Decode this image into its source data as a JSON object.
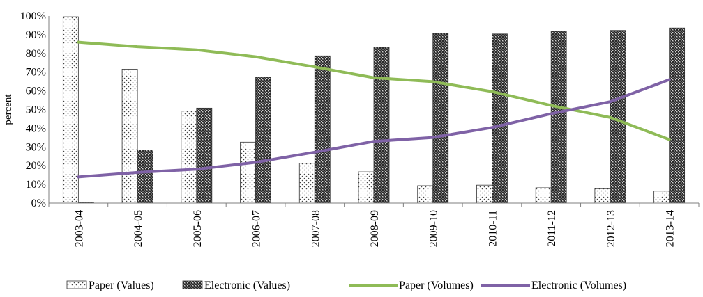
{
  "chart_data": {
    "type": "bar",
    "title": "",
    "xlabel": "",
    "ylabel": "percent",
    "ylim": [
      0,
      100
    ],
    "ytick_labels": [
      "0%",
      "10%",
      "20%",
      "30%",
      "40%",
      "50%",
      "60%",
      "70%",
      "80%",
      "90%",
      "100%"
    ],
    "categories": [
      "2003-04",
      "2004-05",
      "2005-06",
      "2006-07",
      "2007-08",
      "2008-09",
      "2009-10",
      "2010-11",
      "2011-12",
      "2012-13",
      "2013-14"
    ],
    "grid": false,
    "legend_position": "bottom",
    "series": [
      {
        "name": "Paper (Values)",
        "kind": "bar",
        "pattern": "dots",
        "values": [
          99.6,
          71.6,
          49.2,
          32.6,
          21.3,
          16.7,
          9.3,
          9.6,
          8.2,
          7.7,
          6.4
        ]
      },
      {
        "name": "Electronic  (Values)",
        "kind": "bar",
        "pattern": "crosshatch",
        "values": [
          0.4,
          28.4,
          50.8,
          67.4,
          78.7,
          83.3,
          90.7,
          90.4,
          91.8,
          92.3,
          93.6
        ]
      },
      {
        "name": "Paper (Volumes)",
        "kind": "line",
        "color": "#8fbb57",
        "values": [
          86,
          83.6,
          81.9,
          78.2,
          72.8,
          67,
          64.9,
          59.6,
          52.2,
          45.8,
          34
        ]
      },
      {
        "name": "Electronic  (Volumes)",
        "kind": "line",
        "color": "#7f62a6",
        "values": [
          14,
          16.4,
          18.1,
          21.8,
          27.2,
          33,
          35.1,
          40.4,
          47.8,
          54.2,
          66
        ]
      }
    ]
  }
}
